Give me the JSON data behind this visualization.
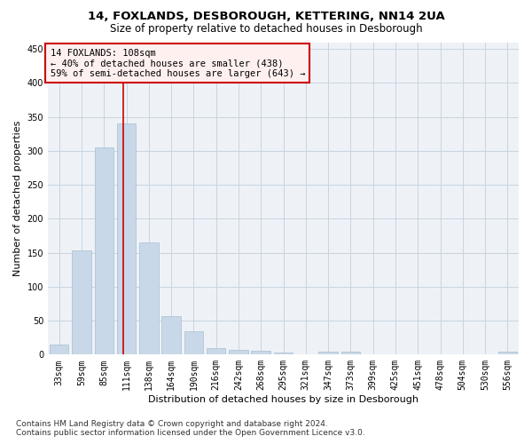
{
  "title1": "14, FOXLANDS, DESBOROUGH, KETTERING, NN14 2UA",
  "title2": "Size of property relative to detached houses in Desborough",
  "xlabel": "Distribution of detached houses by size in Desborough",
  "ylabel": "Number of detached properties",
  "bar_color": "#c8d8e8",
  "bar_edge_color": "#a8bece",
  "grid_color": "#c8d4e0",
  "background_color": "#eef2f7",
  "annotation_box_facecolor": "#fff0f0",
  "annotation_border_color": "#cc0000",
  "vline_color": "#cc0000",
  "annotation_text_line1": "14 FOXLANDS: 108sqm",
  "annotation_text_line2": "← 40% of detached houses are smaller (438)",
  "annotation_text_line3": "59% of semi-detached houses are larger (643) →",
  "categories": [
    "33sqm",
    "59sqm",
    "85sqm",
    "111sqm",
    "138sqm",
    "164sqm",
    "190sqm",
    "216sqm",
    "242sqm",
    "268sqm",
    "295sqm",
    "321sqm",
    "347sqm",
    "373sqm",
    "399sqm",
    "425sqm",
    "451sqm",
    "478sqm",
    "504sqm",
    "530sqm",
    "556sqm"
  ],
  "values": [
    15,
    153,
    305,
    340,
    165,
    57,
    34,
    10,
    7,
    6,
    3,
    0,
    5,
    4,
    0,
    0,
    0,
    0,
    0,
    0,
    4
  ],
  "ylim": [
    0,
    460
  ],
  "yticks": [
    0,
    50,
    100,
    150,
    200,
    250,
    300,
    350,
    400,
    450
  ],
  "vline_x": 2.85,
  "footnote": "Contains HM Land Registry data © Crown copyright and database right 2024.\nContains public sector information licensed under the Open Government Licence v3.0.",
  "title1_fontsize": 9.5,
  "title2_fontsize": 8.5,
  "xlabel_fontsize": 8,
  "ylabel_fontsize": 8,
  "tick_fontsize": 7,
  "annot_fontsize": 7.5,
  "footnote_fontsize": 6.5
}
